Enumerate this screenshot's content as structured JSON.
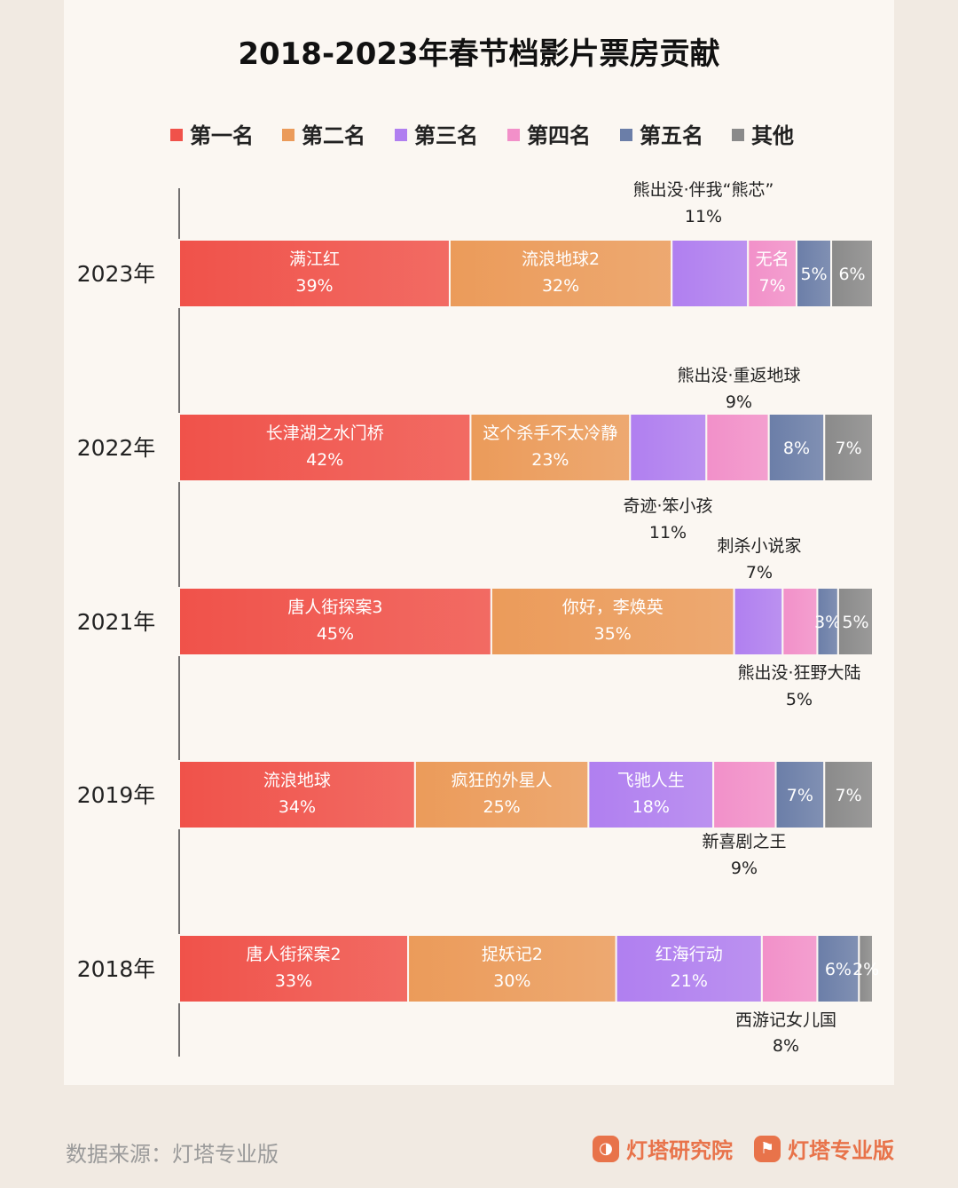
{
  "chart_data": {
    "type": "bar",
    "orientation": "horizontal",
    "stacked": true,
    "percent_stacked": true,
    "title": "2018-2023年春节档影片票房贡献",
    "legend": [
      "第一名",
      "第二名",
      "第三名",
      "第四名",
      "第五名",
      "其他"
    ],
    "legend_position": "top",
    "colors": [
      "#f0524a",
      "#eb9b5a",
      "#b07ff0",
      "#f290c9",
      "#6b7ea8",
      "#8a8a8a"
    ],
    "categories": [
      "2023年",
      "2022年",
      "2021年",
      "2019年",
      "2018年"
    ],
    "rows": [
      {
        "year": "2023年",
        "values": [
          39,
          32,
          11,
          7,
          5,
          6
        ],
        "films": [
          "满江红",
          "流浪地球2",
          "熊出没·伴我“熊芯”",
          "无名",
          "",
          ""
        ],
        "labels": [
          "39%",
          "32%",
          "11%",
          "7%",
          "5%",
          "6%"
        ]
      },
      {
        "year": "2022年",
        "values": [
          42,
          23,
          11,
          9,
          8,
          7
        ],
        "films": [
          "长津湖之水门桥",
          "这个杀手不太冷静",
          "奇迹·笨小孩",
          "熊出没·重返地球",
          "",
          ""
        ],
        "labels": [
          "42%",
          "23%",
          "11%",
          "9%",
          "8%",
          "7%"
        ]
      },
      {
        "year": "2021年",
        "values": [
          45,
          35,
          7,
          5,
          3,
          5
        ],
        "films": [
          "唐人街探案3",
          "你好，李焕英",
          "刺杀小说家",
          "熊出没·狂野大陆",
          "",
          ""
        ],
        "labels": [
          "45%",
          "35%",
          "7%",
          "5%",
          "3%",
          "5%"
        ]
      },
      {
        "year": "2019年",
        "values": [
          34,
          25,
          18,
          9,
          7,
          7
        ],
        "films": [
          "流浪地球",
          "疯狂的外星人",
          "飞驰人生",
          "新喜剧之王",
          "",
          ""
        ],
        "labels": [
          "34%",
          "25%",
          "18%",
          "9%",
          "7%",
          "7%"
        ]
      },
      {
        "year": "2018年",
        "values": [
          33,
          30,
          21,
          8,
          6,
          2
        ],
        "films": [
          "唐人街探案2",
          "捉妖记2",
          "红海行动",
          "西游记女儿国",
          "",
          ""
        ],
        "labels": [
          "33%",
          "30%",
          "21%",
          "8%",
          "6%",
          "2%"
        ]
      }
    ]
  },
  "footer": {
    "source": "数据来源：灯塔专业版",
    "brand1": "灯塔研究院",
    "brand2": "灯塔专业版",
    "brand_color": "#e8734a"
  }
}
